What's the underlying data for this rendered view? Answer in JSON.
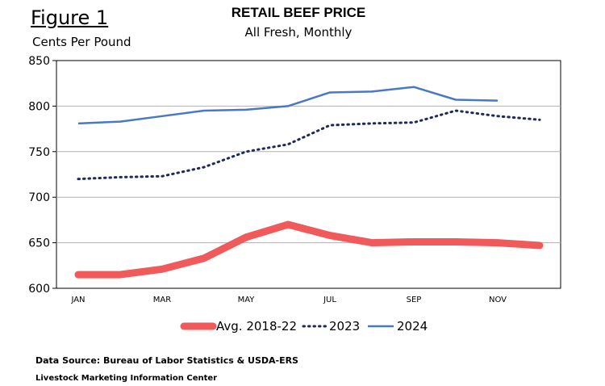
{
  "figure_label": "Figure 1",
  "units_label": "Cents Per Pound",
  "source_text": "Data Source: Bureau of Labor Statistics & USDA-ERS",
  "center_text": "Livestock Marketing Information Center",
  "chart_data": {
    "type": "line",
    "title": "RETAIL BEEF PRICE",
    "subtitle": "All Fresh, Monthly",
    "ylabel": "Cents Per Pound",
    "ylim": [
      600,
      850
    ],
    "yticks": [
      600,
      650,
      700,
      750,
      800,
      850
    ],
    "categories": [
      "JAN",
      "FEB",
      "MAR",
      "APR",
      "MAY",
      "JUN",
      "JUL",
      "AUG",
      "SEP",
      "OCT",
      "NOV",
      "DEC"
    ],
    "xtick_labels": [
      "JAN",
      "",
      "MAR",
      "",
      "MAY",
      "",
      "JUL",
      "",
      "SEP",
      "",
      "NOV",
      ""
    ],
    "grid": "horizontal",
    "legend_position": "bottom",
    "series": [
      {
        "name": "Avg. 2018-22",
        "color": "#f05a5a",
        "style": "thick",
        "values": [
          615,
          615,
          621,
          633,
          656,
          670,
          658,
          650,
          651,
          651,
          650,
          647
        ]
      },
      {
        "name": "2023",
        "color": "#1f2a5c",
        "style": "dotted",
        "values": [
          720,
          722,
          723,
          733,
          750,
          758,
          779,
          781,
          782,
          795,
          789,
          785
        ]
      },
      {
        "name": "2024",
        "color": "#4a78c4",
        "style": "solid",
        "values": [
          781,
          783,
          789,
          795,
          796,
          800,
          815,
          816,
          821,
          807,
          806,
          null
        ]
      }
    ]
  }
}
